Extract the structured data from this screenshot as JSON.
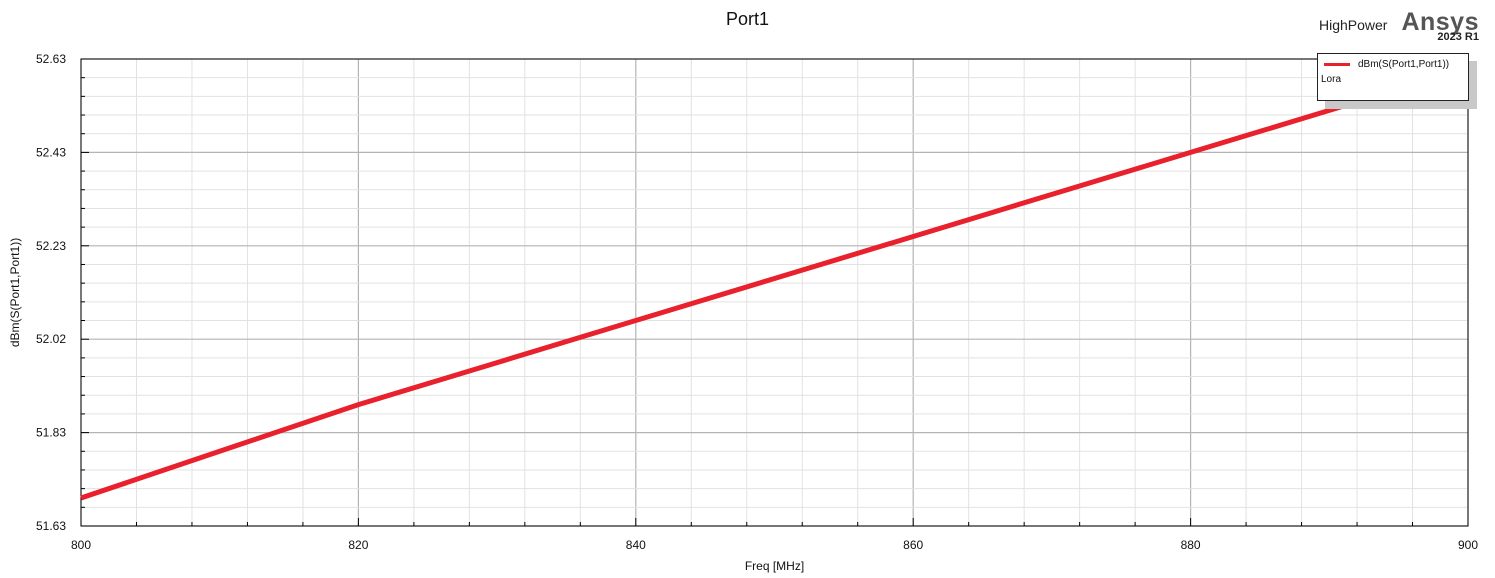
{
  "header": {
    "project_name": "HighPower",
    "brand": "Ansys",
    "version": "2023 R1"
  },
  "legend": {
    "entries": [
      {
        "label": "dBm(S(Port1,Port1))",
        "color": "#e8212c"
      }
    ],
    "sublabel": "Lora"
  },
  "chart_data": {
    "type": "line",
    "title": "Port1",
    "xlabel": "Freq [MHz]",
    "ylabel": "dBm(S(Port1,Port1))",
    "xlim": [
      800,
      900
    ],
    "ylim": [
      51.63,
      52.63
    ],
    "x_ticks": [
      "800",
      "820",
      "840",
      "860",
      "880",
      "900"
    ],
    "y_ticks": [
      "51.63",
      "51.83",
      "52.02",
      "52.23",
      "52.43",
      "52.63"
    ],
    "grid": true,
    "legend_position": "top-right",
    "series": [
      {
        "name": "dBm(S(Port1,Port1))",
        "color": "#e8212c",
        "x": [
          800,
          810,
          820,
          830,
          840,
          850,
          860,
          870,
          880,
          890,
          900
        ],
        "y": [
          51.69,
          51.79,
          51.89,
          51.98,
          52.07,
          52.16,
          52.25,
          52.34,
          52.43,
          52.52,
          52.61
        ]
      }
    ]
  }
}
